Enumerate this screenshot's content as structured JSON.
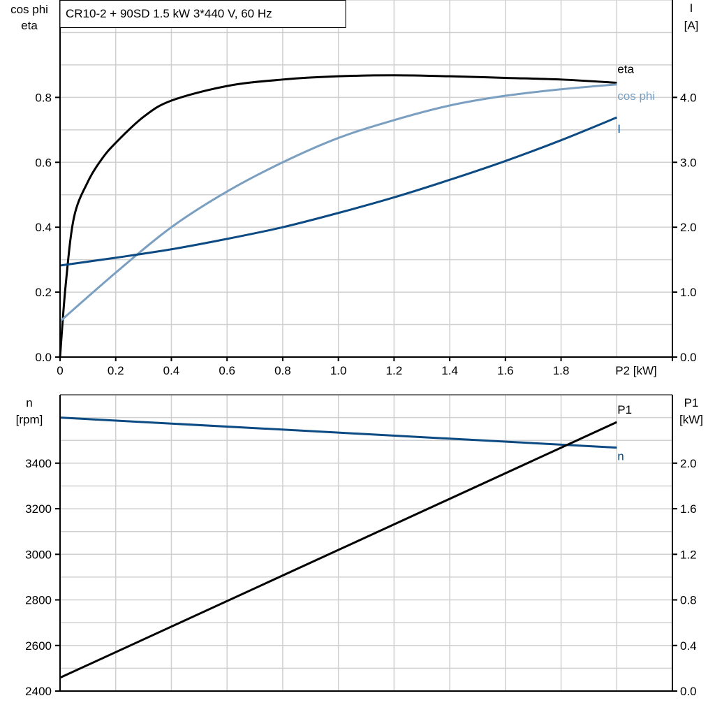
{
  "title": "CR10-2 + 90SD   1.5 kW   3*440 V, 60 Hz",
  "colors": {
    "eta": "#000000",
    "cos_phi": "#7a9fc0",
    "I": "#0b4a82",
    "n": "#0b4a82",
    "P1": "#000000",
    "grid": "#d0d0d0"
  },
  "chart_data": [
    {
      "type": "line",
      "xlabel": "P2 [kW]",
      "ylabel_left": [
        "cos phi",
        "eta"
      ],
      "ylabel_right": [
        "I",
        "[A]"
      ],
      "xlim": [
        0,
        2.2
      ],
      "ylim_left": [
        0,
        1.1
      ],
      "ylim_right": [
        0,
        5.5
      ],
      "x_ticks": [
        "0",
        "0.2",
        "0.4",
        "0.6",
        "0.8",
        "1.0",
        "1.2",
        "1.4",
        "1.6",
        "1.8"
      ],
      "y_ticks_left": [
        "0.0",
        "0.2",
        "0.4",
        "0.6",
        "0.8"
      ],
      "y_ticks_right": [
        "0.0",
        "1.0",
        "2.0",
        "3.0",
        "4.0"
      ],
      "grid": true,
      "series": [
        {
          "name": "eta",
          "axis": "left",
          "x": [
            0,
            0.02,
            0.05,
            0.1,
            0.15,
            0.2,
            0.3,
            0.4,
            0.6,
            0.8,
            1.0,
            1.2,
            1.4,
            1.6,
            1.8,
            2.0
          ],
          "y": [
            0,
            0.22,
            0.43,
            0.54,
            0.61,
            0.66,
            0.74,
            0.79,
            0.835,
            0.855,
            0.865,
            0.868,
            0.865,
            0.86,
            0.855,
            0.845
          ]
        },
        {
          "name": "cos phi",
          "axis": "left",
          "x": [
            0,
            0.2,
            0.4,
            0.6,
            0.8,
            1.0,
            1.2,
            1.4,
            1.6,
            1.8,
            2.0
          ],
          "y": [
            0.11,
            0.26,
            0.4,
            0.51,
            0.6,
            0.675,
            0.73,
            0.775,
            0.805,
            0.825,
            0.84
          ]
        },
        {
          "name": "I",
          "axis": "right",
          "x": [
            0,
            0.2,
            0.4,
            0.6,
            0.8,
            1.0,
            1.2,
            1.4,
            1.6,
            1.8,
            2.0
          ],
          "y": [
            1.41,
            1.53,
            1.66,
            1.82,
            2.0,
            2.22,
            2.46,
            2.73,
            3.02,
            3.34,
            3.69
          ]
        }
      ]
    },
    {
      "type": "line",
      "xlim": [
        0,
        2.2
      ],
      "ylabel_left": [
        "n",
        "[rpm]"
      ],
      "ylabel_right": [
        "P1",
        "[kW]"
      ],
      "ylim_left": [
        2400,
        3700
      ],
      "ylim_right": [
        0,
        2.6
      ],
      "y_ticks_left": [
        "2400",
        "2600",
        "2800",
        "3000",
        "3200",
        "3400"
      ],
      "y_ticks_right": [
        "0.0",
        "0.4",
        "0.8",
        "1.2",
        "1.6",
        "2.0"
      ],
      "grid": true,
      "series": [
        {
          "name": "n",
          "axis": "left",
          "x": [
            0,
            2.0
          ],
          "y": [
            3600,
            3468
          ]
        },
        {
          "name": "P1",
          "axis": "right",
          "x": [
            0,
            2.0
          ],
          "y": [
            0.117,
            2.36
          ]
        }
      ]
    }
  ]
}
